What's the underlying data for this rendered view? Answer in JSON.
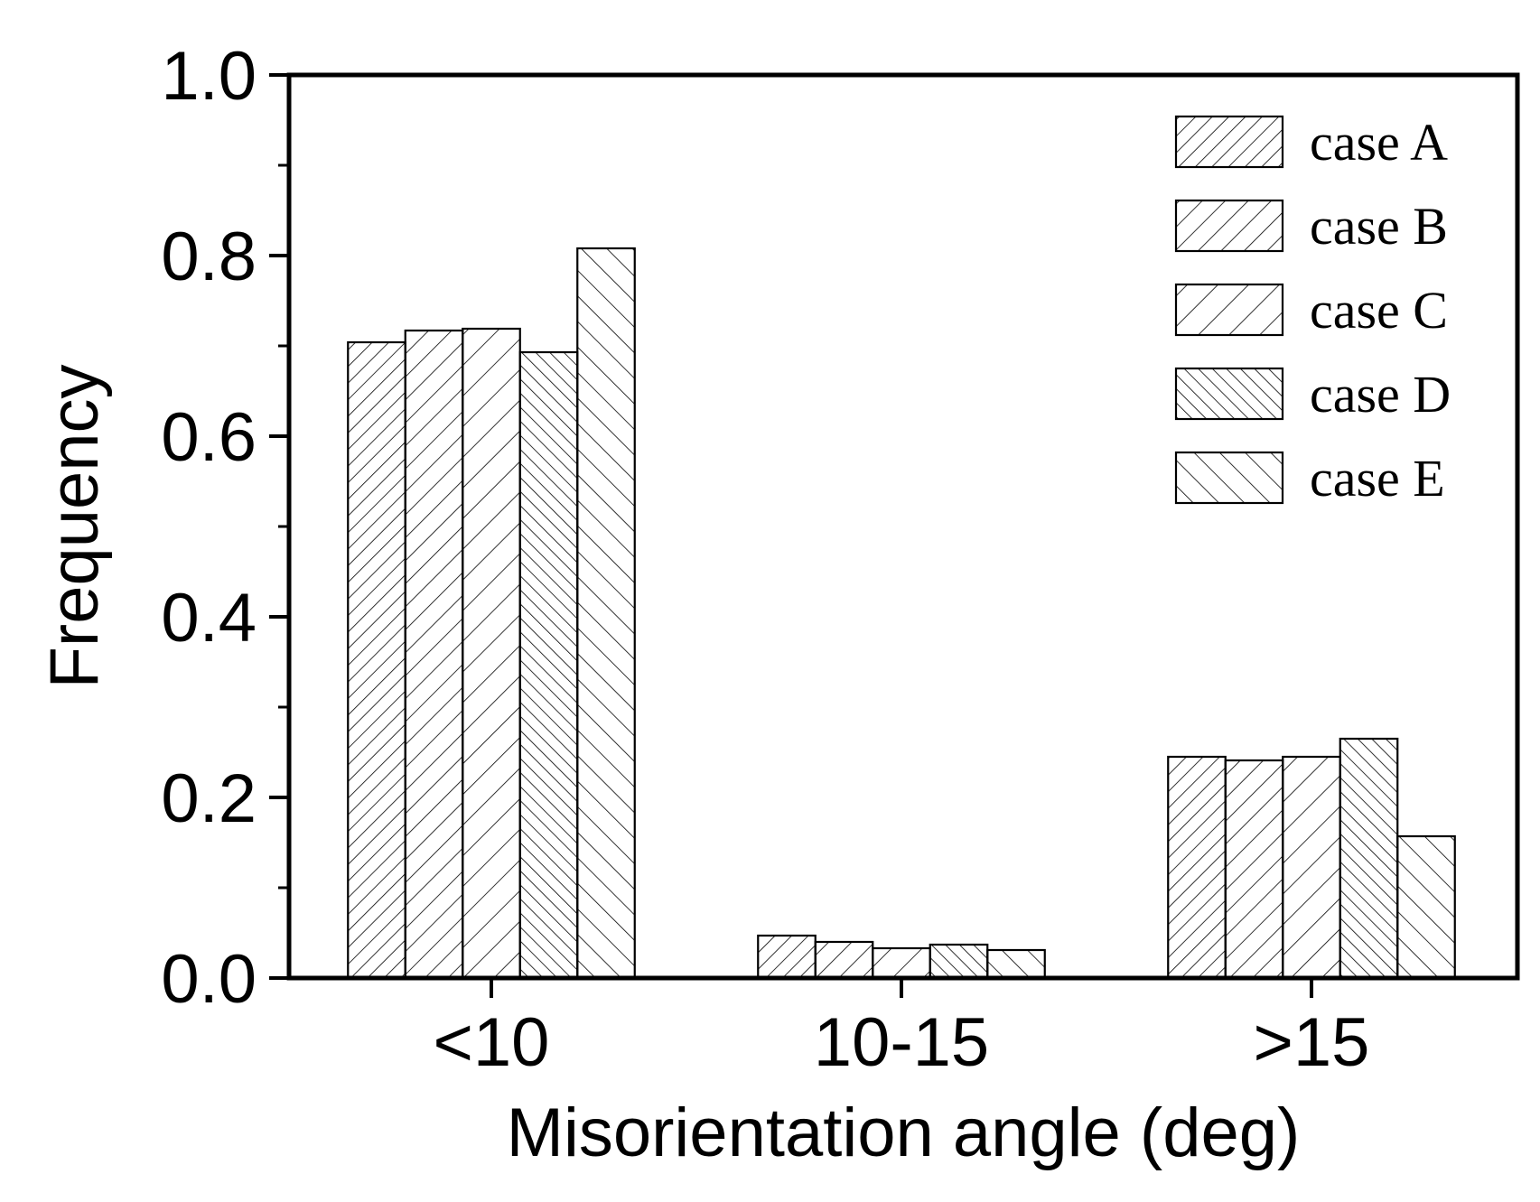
{
  "chart_data": {
    "type": "bar",
    "title": "",
    "xlabel": "Misorientation angle (deg)",
    "ylabel": "Frequency",
    "ylim": [
      0,
      1.0
    ],
    "yticks": [
      0.0,
      0.2,
      0.4,
      0.6,
      0.8,
      1.0
    ],
    "ytick_labels": [
      "0.0",
      "0.2",
      "0.4",
      "0.6",
      "0.8",
      "1.0"
    ],
    "categories": [
      "<10",
      "10-15",
      ">15"
    ],
    "grid": false,
    "legend_position": "top-right",
    "series": [
      {
        "name": "case A",
        "values": [
          0.704,
          0.047,
          0.245
        ],
        "hatch": "up-dense"
      },
      {
        "name": "case B",
        "values": [
          0.717,
          0.04,
          0.241
        ],
        "hatch": "up-medium"
      },
      {
        "name": "case C",
        "values": [
          0.719,
          0.033,
          0.245
        ],
        "hatch": "up-sparse"
      },
      {
        "name": "case D",
        "values": [
          0.693,
          0.037,
          0.265
        ],
        "hatch": "down-dense"
      },
      {
        "name": "case E",
        "values": [
          0.808,
          0.031,
          0.157
        ],
        "hatch": "down-sparse"
      }
    ]
  }
}
